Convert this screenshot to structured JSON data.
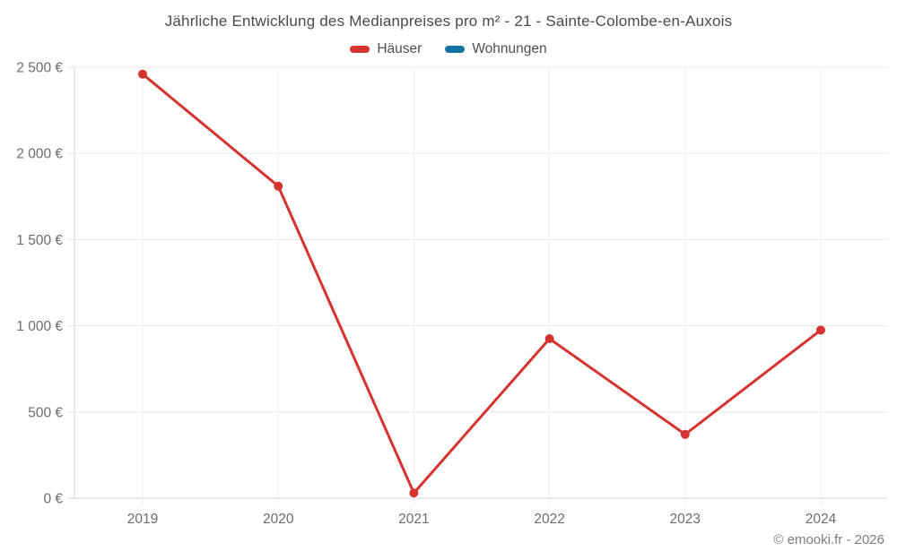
{
  "title": "Jährliche Entwicklung des Medianpreises pro m² - 21 - Sainte-Colombe-en-Auxois",
  "legend": [
    {
      "label": "Häuser",
      "color": "#d4332f"
    },
    {
      "label": "Wohnungen",
      "color": "#1272a2"
    }
  ],
  "footer": "© emooki.fr - 2026",
  "chart_data": {
    "type": "line",
    "title": "Jährliche Entwicklung des Medianpreises pro m² - 21 - Sainte-Colombe-en-Auxois",
    "xlabel": "",
    "ylabel": "",
    "categories": [
      "2019",
      "2020",
      "2021",
      "2022",
      "2023",
      "2024"
    ],
    "series": [
      {
        "name": "Häuser",
        "color": "#d4332f",
        "values": [
          2460,
          1810,
          30,
          925,
          370,
          975
        ]
      },
      {
        "name": "Wohnungen",
        "color": "#1272a2",
        "values": []
      }
    ],
    "yticks": [
      0,
      500,
      1000,
      1500,
      2000,
      2500
    ],
    "ytick_labels": [
      "0 €",
      "500 €",
      "1 000 €",
      "1 500 €",
      "2 000 €",
      "2 500 €"
    ],
    "ylim": [
      0,
      2500
    ],
    "grid": true,
    "legend_position": "top"
  }
}
